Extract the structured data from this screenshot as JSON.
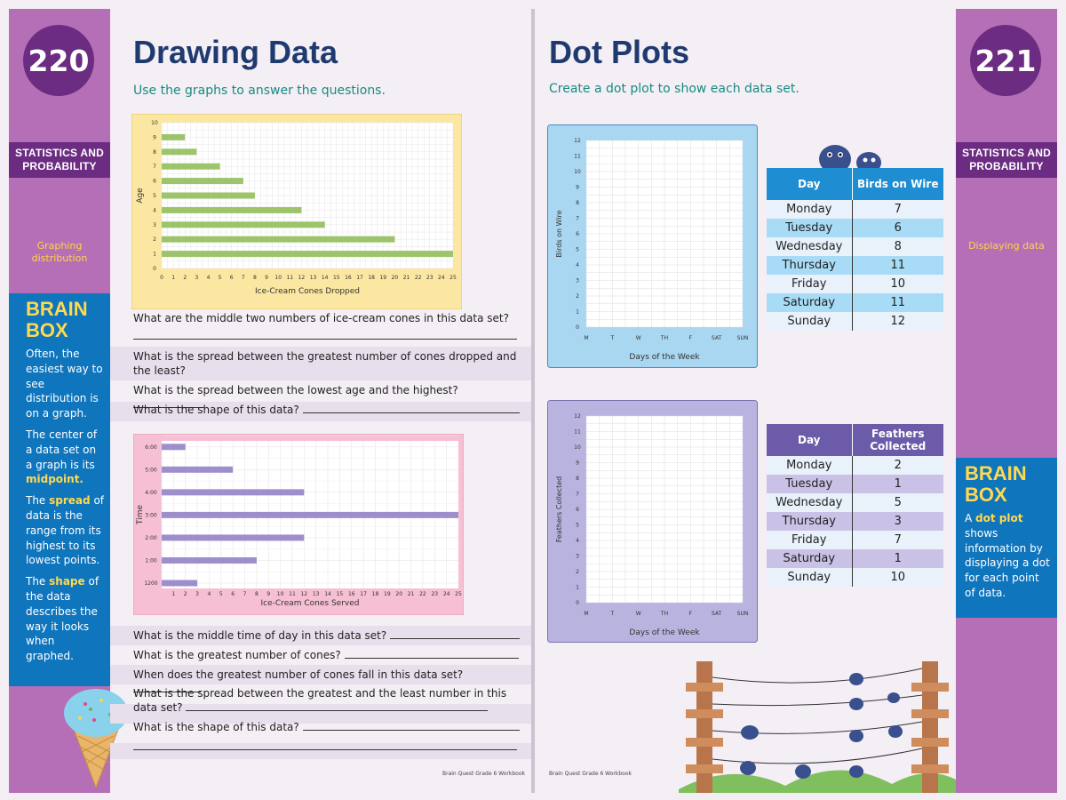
{
  "left": {
    "page_number": "220",
    "tag": "STATISTICS AND PROBABILITY",
    "topic": "Graphing distribution",
    "title": "Drawing Data",
    "subtitle": "Use the graphs to answer the questions.",
    "brainbox": {
      "title": "BRAIN BOX",
      "p1": "Often, the easiest way to see distribution is on a graph.",
      "p2_pre": "The center of a data set on a graph is its ",
      "p2_hl": "midpoint.",
      "p3_pre": "The ",
      "p3_hl": "spread",
      "p3_post": " of data is the range from its highest to its lowest points.",
      "p4_pre": "The ",
      "p4_hl": "shape",
      "p4_post": " of the data describes the way it looks when graphed."
    },
    "questions1": [
      "What are the middle two numbers of ice-cream cones in this data set?",
      "What is the spread between the greatest number of cones dropped and the least?",
      "What is the spread between the lowest age and the highest?",
      "What is the shape of this data?"
    ],
    "questions2": [
      "What is the middle time of day in this data set?",
      "What is the greatest number of cones?",
      "When does the greatest number of cones fall in this data set?",
      "What is the spread between the greatest and the least number in this data set?",
      "What is the shape of this data?"
    ],
    "footer": "Brain Quest Grade 6 Workbook"
  },
  "right": {
    "page_number": "221",
    "tag": "STATISTICS AND PROBABILITY",
    "topic": "Displaying data",
    "title": "Dot Plots",
    "subtitle": "Create a dot plot to show each data set.",
    "brainbox": {
      "title": "BRAIN BOX",
      "p1_pre": "A ",
      "p1_hl": "dot plot",
      "p1_post": " shows information by displaying a dot for each point of data."
    },
    "table1": {
      "headers": [
        "Day",
        "Birds on Wire"
      ],
      "rows": [
        [
          "Monday",
          "7"
        ],
        [
          "Tuesday",
          "6"
        ],
        [
          "Wednesday",
          "8"
        ],
        [
          "Thursday",
          "11"
        ],
        [
          "Friday",
          "10"
        ],
        [
          "Saturday",
          "11"
        ],
        [
          "Sunday",
          "12"
        ]
      ]
    },
    "table2": {
      "headers": [
        "Day",
        "Feathers Collected"
      ],
      "rows": [
        [
          "Monday",
          "2"
        ],
        [
          "Tuesday",
          "1"
        ],
        [
          "Wednesday",
          "5"
        ],
        [
          "Thursday",
          "3"
        ],
        [
          "Friday",
          "7"
        ],
        [
          "Saturday",
          "1"
        ],
        [
          "Sunday",
          "10"
        ]
      ]
    },
    "footer": "Brain Quest Grade 6 Workbook"
  },
  "colors": {
    "sidebar": "#b56fb6",
    "badge": "#6b2c81",
    "brainbox": "#0f75bd",
    "title": "#1e3a6e",
    "subtitle": "#168c82",
    "chart1_frame": "#fbe7a1",
    "chart1_bar": "#9dc46a",
    "chart2_frame": "#f7bfd3",
    "chart2_bar": "#9e8fcc",
    "plot1_frame": "#a9d6f0",
    "plot2_frame": "#b9b4df",
    "table1_header": "#1e8dd2",
    "table1_stripe": "#a8dbf5",
    "table2_header": "#6c5ba8",
    "table2_stripe": "#c9c2e6"
  },
  "chart_data": [
    {
      "type": "bar",
      "orientation": "horizontal",
      "title": "",
      "xlabel": "Ice-Cream Cones Dropped",
      "ylabel": "Age",
      "xlim": [
        0,
        25
      ],
      "ylim": [
        0,
        10
      ],
      "x_ticks": [
        0,
        1,
        2,
        3,
        4,
        5,
        6,
        7,
        8,
        9,
        10,
        11,
        12,
        13,
        14,
        15,
        16,
        17,
        18,
        19,
        20,
        21,
        22,
        23,
        24,
        25
      ],
      "y_ticks": [
        0,
        1,
        2,
        3,
        4,
        5,
        6,
        7,
        8,
        9,
        10
      ],
      "categories": [
        1,
        2,
        3,
        4,
        5,
        6,
        7,
        8,
        9
      ],
      "values": [
        25,
        20,
        14,
        12,
        8,
        7,
        5,
        3,
        2
      ],
      "grid": true
    },
    {
      "type": "bar",
      "orientation": "horizontal",
      "title": "",
      "xlabel": "Ice-Cream Cones Served",
      "ylabel": "Time",
      "xlim": [
        0,
        25
      ],
      "x_ticks": [
        1,
        2,
        3,
        4,
        5,
        6,
        7,
        8,
        9,
        10,
        11,
        12,
        13,
        14,
        15,
        16,
        17,
        18,
        19,
        20,
        21,
        22,
        23,
        24,
        25
      ],
      "categories": [
        "1200",
        "1:00",
        "2:00",
        "3:00",
        "4:00",
        "5:00",
        "6:00"
      ],
      "values": [
        3,
        8,
        12,
        25,
        12,
        6,
        2
      ],
      "grid": true
    },
    {
      "type": "scatter",
      "title": "",
      "xlabel": "Days of the Week",
      "ylabel": "Birds on Wire",
      "categories": [
        "M",
        "T",
        "W",
        "TH",
        "F",
        "SAT",
        "SUN"
      ],
      "ylim": [
        0,
        12
      ],
      "y_ticks": [
        0,
        1,
        2,
        3,
        4,
        5,
        6,
        7,
        8,
        9,
        10,
        11,
        12
      ],
      "grid": true,
      "points": []
    },
    {
      "type": "scatter",
      "title": "",
      "xlabel": "Days of the Week",
      "ylabel": "Feathers Collected",
      "categories": [
        "M",
        "T",
        "W",
        "TH",
        "F",
        "SAT",
        "SUN"
      ],
      "ylim": [
        0,
        12
      ],
      "y_ticks": [
        0,
        1,
        2,
        3,
        4,
        5,
        6,
        7,
        8,
        9,
        10,
        11,
        12
      ],
      "grid": true,
      "points": []
    }
  ]
}
